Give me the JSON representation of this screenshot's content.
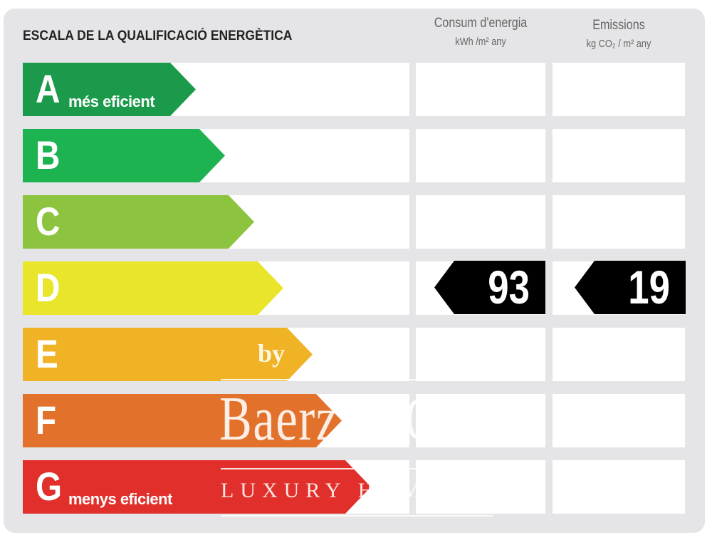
{
  "title": "ESCALA DE LA QUALIFICACIÓ ENERGÈTICA",
  "columns": [
    {
      "label": "Consum d'energia",
      "unit": "kWh /m² any"
    },
    {
      "label": "Emissions",
      "unit": "kg CO₂ / m² any"
    }
  ],
  "grades": [
    {
      "letter": "A",
      "sub": "més eficient",
      "color": "#1a9a4a"
    },
    {
      "letter": "B",
      "sub": "",
      "color": "#1db350"
    },
    {
      "letter": "C",
      "sub": "",
      "color": "#8cc43f"
    },
    {
      "letter": "D",
      "sub": "",
      "color": "#e8e52a"
    },
    {
      "letter": "E",
      "sub": "",
      "color": "#f0b325"
    },
    {
      "letter": "F",
      "sub": "",
      "color": "#e2722b"
    },
    {
      "letter": "G",
      "sub": "menys eficient",
      "color": "#e1302b"
    }
  ],
  "rating": {
    "grade": "D",
    "energy_value": "93",
    "emissions_value": "19"
  },
  "watermark": {
    "by": "by",
    "brand": "Baerz & Co",
    "tagline": "LUXURY HOMES"
  }
}
